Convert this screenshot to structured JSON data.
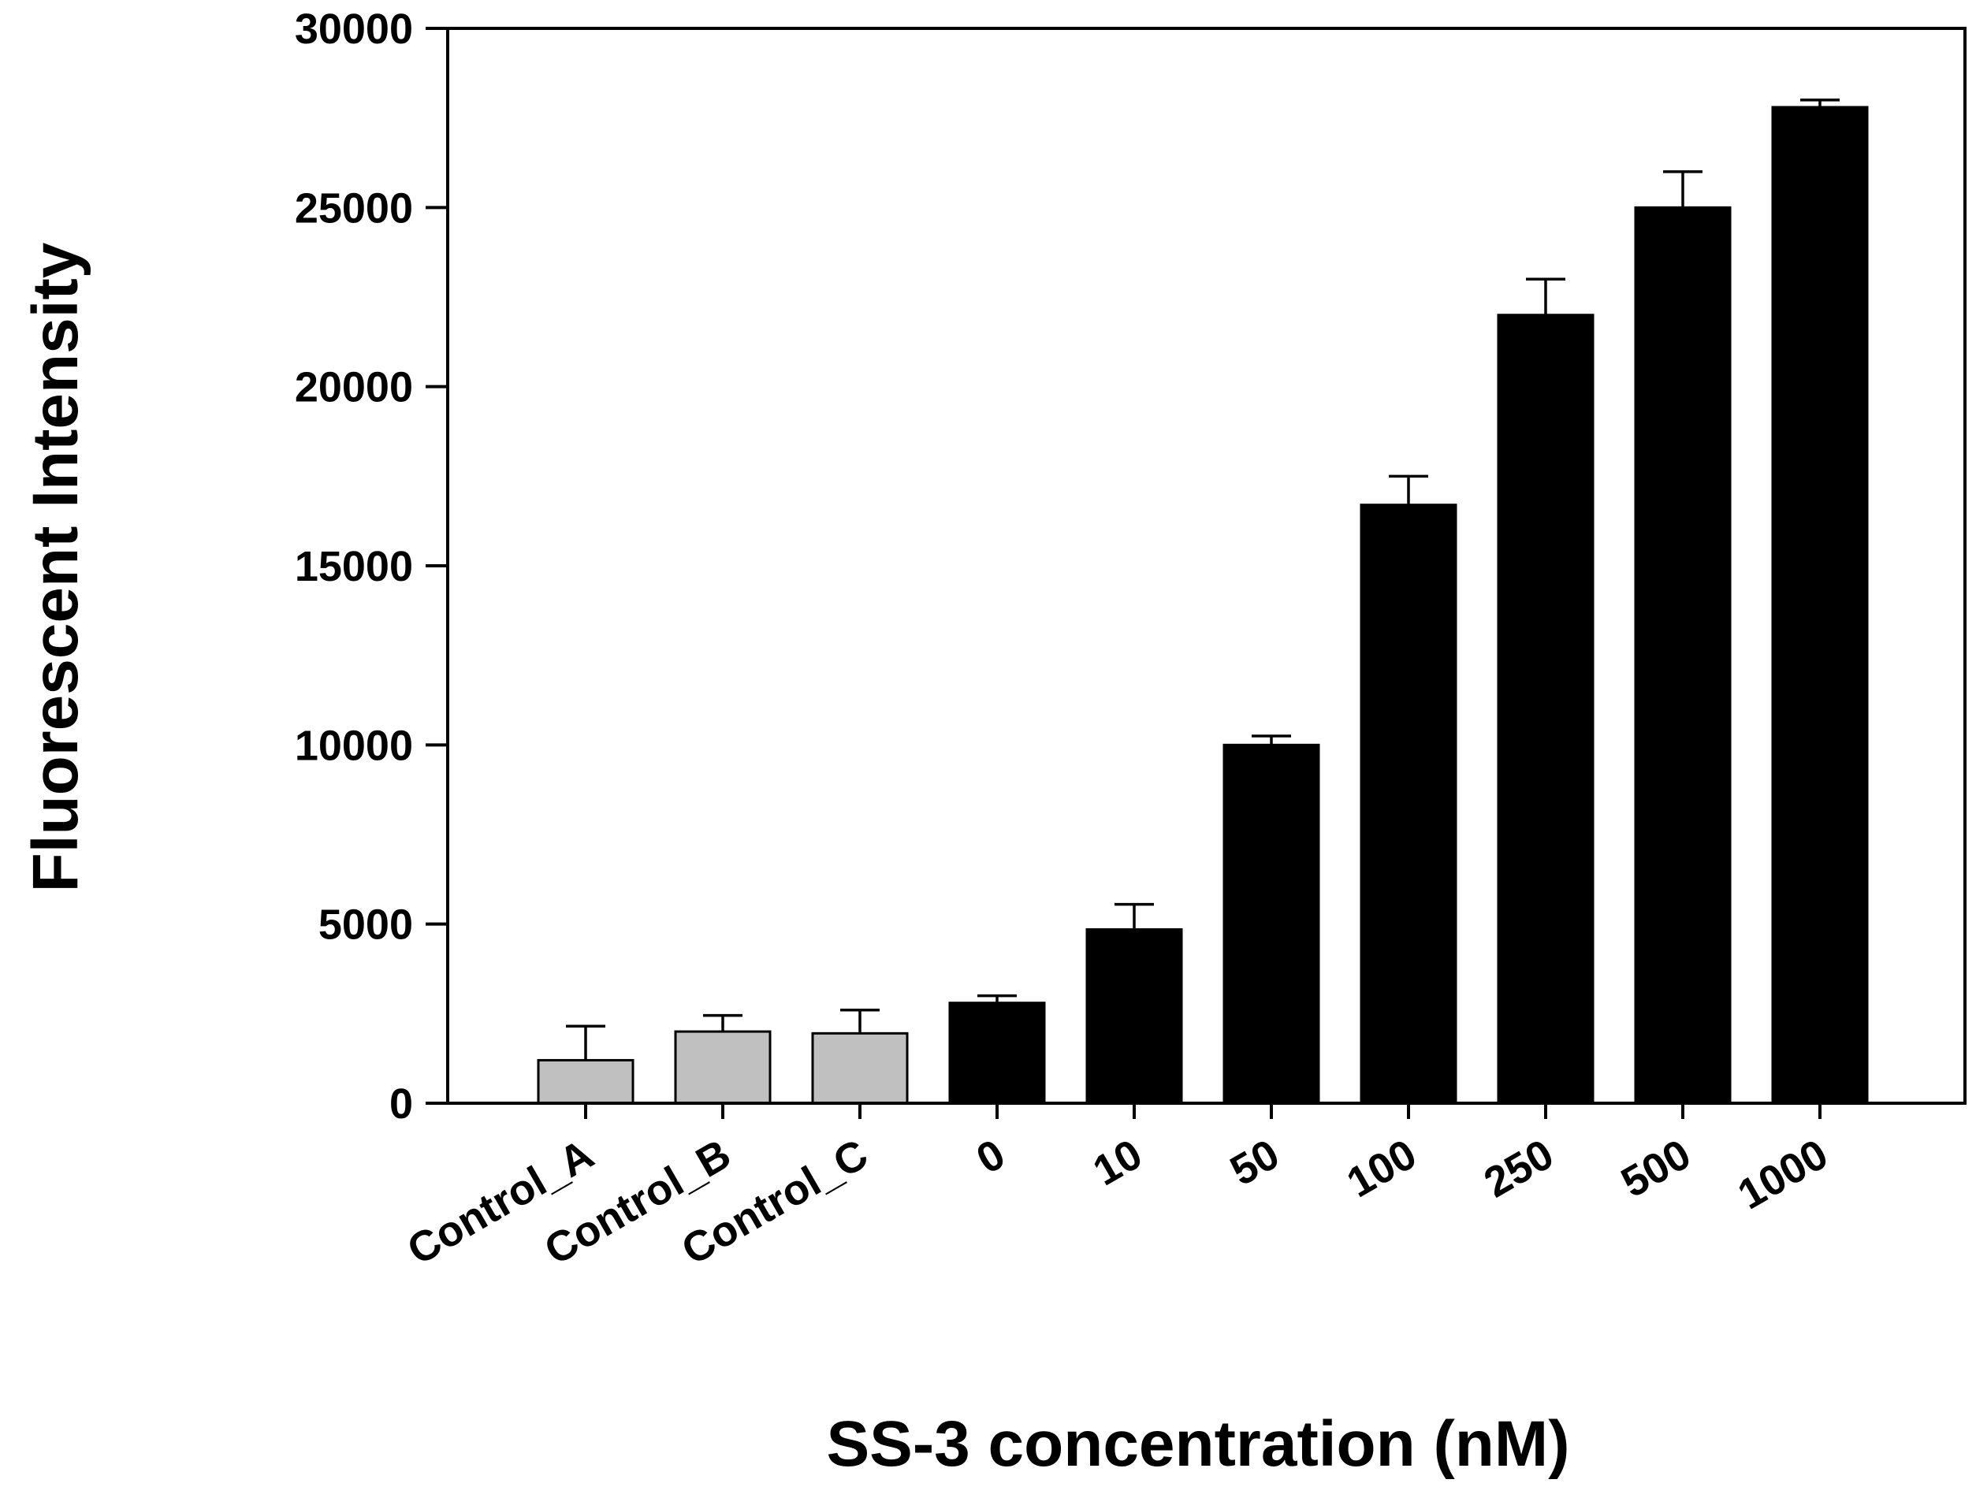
{
  "chart_data": {
    "type": "bar",
    "title": "",
    "xlabel": "SS-3 concentration (nM)",
    "ylabel": "Fluorescent Intensity",
    "ylim": [
      0,
      30000
    ],
    "yticks": [
      0,
      5000,
      10000,
      15000,
      20000,
      25000,
      30000
    ],
    "grid": false,
    "categories": [
      "Control_A",
      "Control_B",
      "Control_C",
      "0",
      "10",
      "50",
      "100",
      "250",
      "500",
      "1000"
    ],
    "series": [
      {
        "name": "Fluorescent Intensity",
        "values": [
          1200,
          2000,
          1950,
          2800,
          4850,
          10000,
          16700,
          22000,
          25000,
          27800
        ],
        "error_plus": [
          950,
          450,
          650,
          200,
          700,
          250,
          800,
          1000,
          1000,
          200
        ],
        "colors": [
          "#c0c0c0",
          "#c0c0c0",
          "#c0c0c0",
          "#000000",
          "#000000",
          "#000000",
          "#000000",
          "#000000",
          "#000000",
          "#000000"
        ]
      }
    ]
  }
}
